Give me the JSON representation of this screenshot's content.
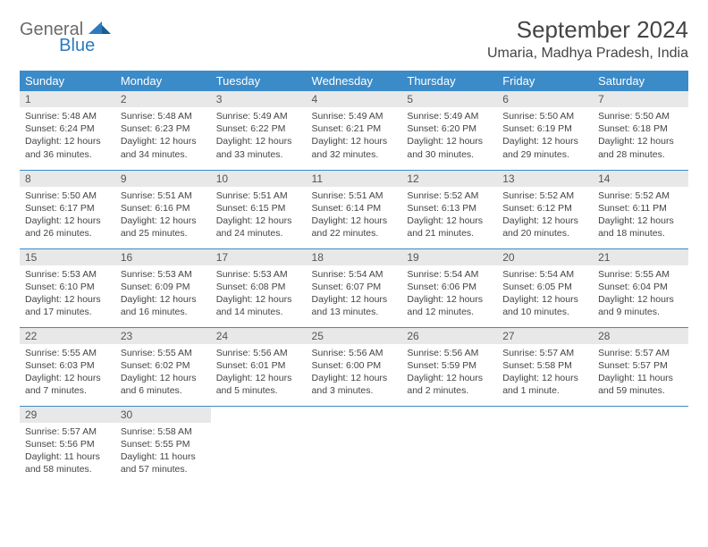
{
  "logo": {
    "text1": "General",
    "text2": "Blue"
  },
  "title": "September 2024",
  "location": "Umaria, Madhya Pradesh, India",
  "colors": {
    "header_bg": "#3b8bc9",
    "header_text": "#ffffff",
    "daynum_bg": "#e8e8e8",
    "border": "#3b8bc9",
    "logo_gray": "#6b6b6b",
    "logo_blue": "#2b7bbf"
  },
  "weekdays": [
    "Sunday",
    "Monday",
    "Tuesday",
    "Wednesday",
    "Thursday",
    "Friday",
    "Saturday"
  ],
  "weeks": [
    [
      {
        "n": "1",
        "sr": "5:48 AM",
        "ss": "6:24 PM",
        "dl": "12 hours and 36 minutes."
      },
      {
        "n": "2",
        "sr": "5:48 AM",
        "ss": "6:23 PM",
        "dl": "12 hours and 34 minutes."
      },
      {
        "n": "3",
        "sr": "5:49 AM",
        "ss": "6:22 PM",
        "dl": "12 hours and 33 minutes."
      },
      {
        "n": "4",
        "sr": "5:49 AM",
        "ss": "6:21 PM",
        "dl": "12 hours and 32 minutes."
      },
      {
        "n": "5",
        "sr": "5:49 AM",
        "ss": "6:20 PM",
        "dl": "12 hours and 30 minutes."
      },
      {
        "n": "6",
        "sr": "5:50 AM",
        "ss": "6:19 PM",
        "dl": "12 hours and 29 minutes."
      },
      {
        "n": "7",
        "sr": "5:50 AM",
        "ss": "6:18 PM",
        "dl": "12 hours and 28 minutes."
      }
    ],
    [
      {
        "n": "8",
        "sr": "5:50 AM",
        "ss": "6:17 PM",
        "dl": "12 hours and 26 minutes."
      },
      {
        "n": "9",
        "sr": "5:51 AM",
        "ss": "6:16 PM",
        "dl": "12 hours and 25 minutes."
      },
      {
        "n": "10",
        "sr": "5:51 AM",
        "ss": "6:15 PM",
        "dl": "12 hours and 24 minutes."
      },
      {
        "n": "11",
        "sr": "5:51 AM",
        "ss": "6:14 PM",
        "dl": "12 hours and 22 minutes."
      },
      {
        "n": "12",
        "sr": "5:52 AM",
        "ss": "6:13 PM",
        "dl": "12 hours and 21 minutes."
      },
      {
        "n": "13",
        "sr": "5:52 AM",
        "ss": "6:12 PM",
        "dl": "12 hours and 20 minutes."
      },
      {
        "n": "14",
        "sr": "5:52 AM",
        "ss": "6:11 PM",
        "dl": "12 hours and 18 minutes."
      }
    ],
    [
      {
        "n": "15",
        "sr": "5:53 AM",
        "ss": "6:10 PM",
        "dl": "12 hours and 17 minutes."
      },
      {
        "n": "16",
        "sr": "5:53 AM",
        "ss": "6:09 PM",
        "dl": "12 hours and 16 minutes."
      },
      {
        "n": "17",
        "sr": "5:53 AM",
        "ss": "6:08 PM",
        "dl": "12 hours and 14 minutes."
      },
      {
        "n": "18",
        "sr": "5:54 AM",
        "ss": "6:07 PM",
        "dl": "12 hours and 13 minutes."
      },
      {
        "n": "19",
        "sr": "5:54 AM",
        "ss": "6:06 PM",
        "dl": "12 hours and 12 minutes."
      },
      {
        "n": "20",
        "sr": "5:54 AM",
        "ss": "6:05 PM",
        "dl": "12 hours and 10 minutes."
      },
      {
        "n": "21",
        "sr": "5:55 AM",
        "ss": "6:04 PM",
        "dl": "12 hours and 9 minutes."
      }
    ],
    [
      {
        "n": "22",
        "sr": "5:55 AM",
        "ss": "6:03 PM",
        "dl": "12 hours and 7 minutes."
      },
      {
        "n": "23",
        "sr": "5:55 AM",
        "ss": "6:02 PM",
        "dl": "12 hours and 6 minutes."
      },
      {
        "n": "24",
        "sr": "5:56 AM",
        "ss": "6:01 PM",
        "dl": "12 hours and 5 minutes."
      },
      {
        "n": "25",
        "sr": "5:56 AM",
        "ss": "6:00 PM",
        "dl": "12 hours and 3 minutes."
      },
      {
        "n": "26",
        "sr": "5:56 AM",
        "ss": "5:59 PM",
        "dl": "12 hours and 2 minutes."
      },
      {
        "n": "27",
        "sr": "5:57 AM",
        "ss": "5:58 PM",
        "dl": "12 hours and 1 minute."
      },
      {
        "n": "28",
        "sr": "5:57 AM",
        "ss": "5:57 PM",
        "dl": "11 hours and 59 minutes."
      }
    ],
    [
      {
        "n": "29",
        "sr": "5:57 AM",
        "ss": "5:56 PM",
        "dl": "11 hours and 58 minutes."
      },
      {
        "n": "30",
        "sr": "5:58 AM",
        "ss": "5:55 PM",
        "dl": "11 hours and 57 minutes."
      },
      null,
      null,
      null,
      null,
      null
    ]
  ],
  "labels": {
    "sunrise": "Sunrise:",
    "sunset": "Sunset:",
    "daylight": "Daylight:"
  }
}
